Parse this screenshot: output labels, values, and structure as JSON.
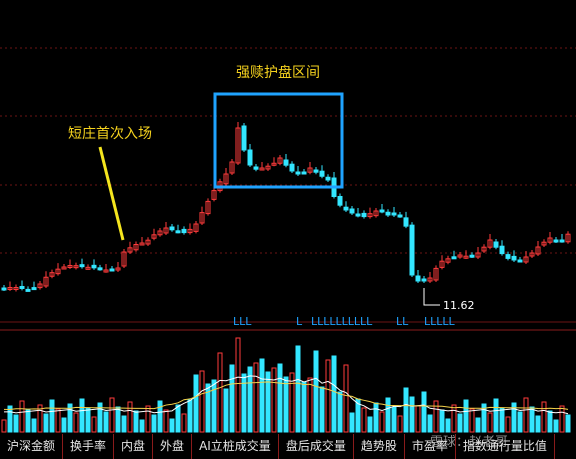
{
  "chart_data": {
    "type": "candlestick",
    "annotations": {
      "zone_label": "强赎护盘区间",
      "entry_label": "短庄首次入场",
      "low_price_label": "11.62"
    },
    "signal_marks": [
      "LLL",
      "L",
      "LLLLLLLLLL",
      "LL",
      "LLLLL"
    ],
    "colors": {
      "up": "#ff3b3b",
      "down": "#33e6ff",
      "ma1": "#ffffff",
      "ma2": "#f5d24a",
      "zone": "#1fa3ff",
      "annotation": "#f5d21e"
    }
  },
  "bottom_tabs": [
    "沪深金额",
    "换手率",
    "内盘",
    "外盘",
    "AI立桩成交量",
    "盘后成交量",
    "趋势股",
    "市盈率",
    "指数通行量比值"
  ],
  "watermark": "雪球：赵老哥"
}
